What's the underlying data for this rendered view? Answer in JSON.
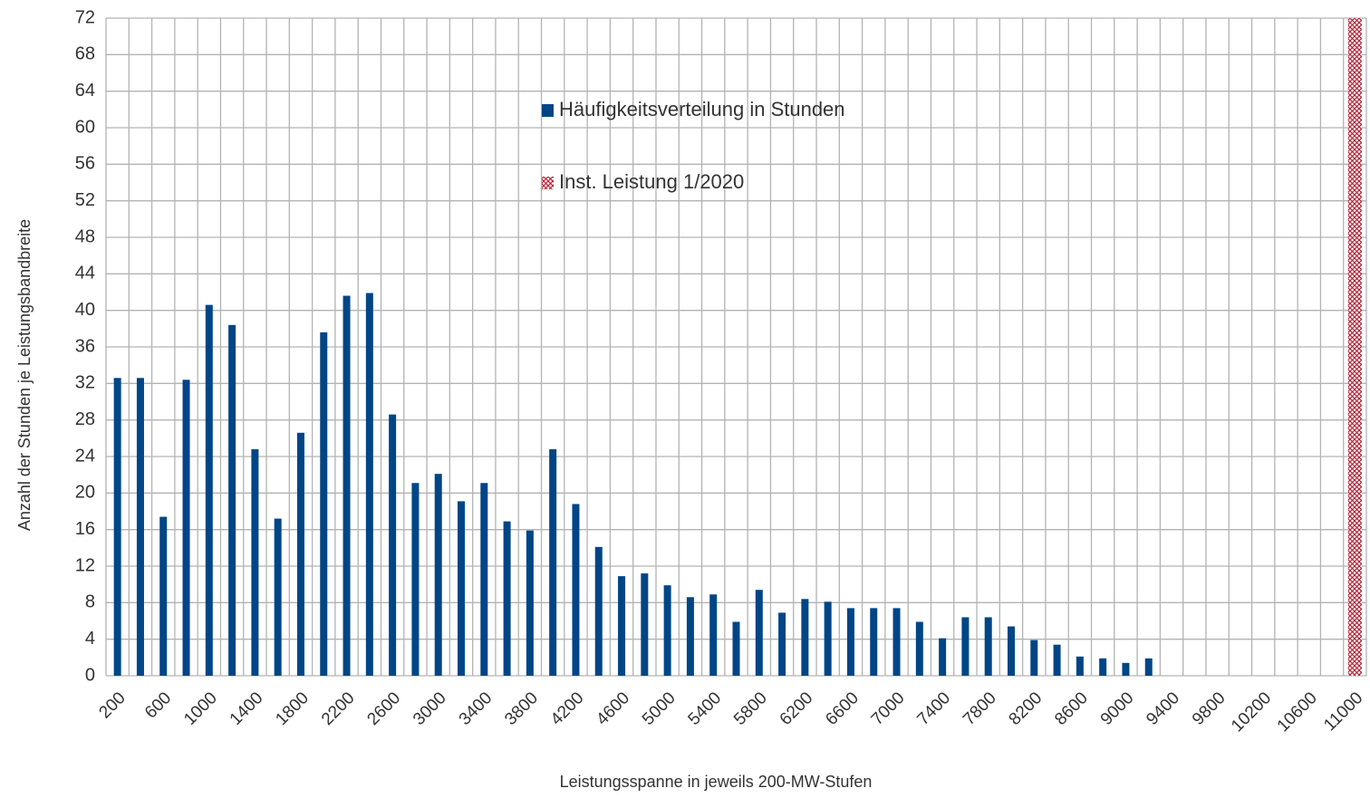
{
  "chart_data": {
    "type": "bar",
    "x_label": "Leistungsspanne in jeweils 200-MW-Stufen",
    "y_label": "Anzahl der Stunden je Leistungsbandbreite",
    "categories": [
      "200",
      null,
      "600",
      null,
      "1000",
      null,
      "1400",
      null,
      "1800",
      null,
      "2200",
      null,
      "2600",
      null,
      "3000",
      null,
      "3400",
      null,
      "3800",
      null,
      "4200",
      null,
      "4600",
      null,
      "5000",
      null,
      "5400",
      null,
      "5800",
      null,
      "6200",
      null,
      "6600",
      null,
      "7000",
      null,
      "7400",
      null,
      "7800",
      null,
      "8200",
      null,
      "8600",
      null,
      "9000",
      null,
      "9400",
      null,
      "9800",
      null,
      "10200",
      null,
      "10600",
      null,
      "11000"
    ],
    "series": [
      {
        "name": "Häufigkeitsverteilung in Stunden",
        "color": "#004586",
        "values": [
          32.6,
          32.6,
          17.4,
          32.4,
          40.6,
          38.4,
          24.8,
          17.2,
          26.6,
          37.6,
          41.6,
          41.9,
          28.6,
          21.1,
          22.1,
          19.1,
          21.1,
          16.9,
          15.9,
          24.8,
          18.8,
          14.1,
          10.9,
          11.2,
          9.9,
          8.6,
          8.9,
          5.9,
          9.4,
          6.9,
          8.4,
          8.1,
          7.4,
          7.4,
          7.4,
          5.9,
          4.1,
          6.4,
          6.4,
          5.4,
          3.9,
          3.4,
          2.1,
          1.9,
          1.4,
          1.9,
          null,
          null,
          null,
          null,
          null,
          null,
          null,
          null,
          null
        ]
      },
      {
        "name": "Inst. Leistung 1/2020",
        "color": "#b3263a",
        "pattern": "crosshatch",
        "values": [
          null,
          null,
          null,
          null,
          null,
          null,
          null,
          null,
          null,
          null,
          null,
          null,
          null,
          null,
          null,
          null,
          null,
          null,
          null,
          null,
          null,
          null,
          null,
          null,
          null,
          null,
          null,
          null,
          null,
          null,
          null,
          null,
          null,
          null,
          null,
          null,
          null,
          null,
          null,
          null,
          null,
          null,
          null,
          null,
          null,
          null,
          null,
          null,
          null,
          null,
          null,
          null,
          null,
          null,
          72
        ]
      }
    ],
    "ylim": [
      0,
      72
    ],
    "yticks": [
      0,
      4,
      8,
      12,
      16,
      20,
      24,
      28,
      32,
      36,
      40,
      44,
      48,
      52,
      56,
      60,
      64,
      68,
      72
    ],
    "grid": true
  }
}
